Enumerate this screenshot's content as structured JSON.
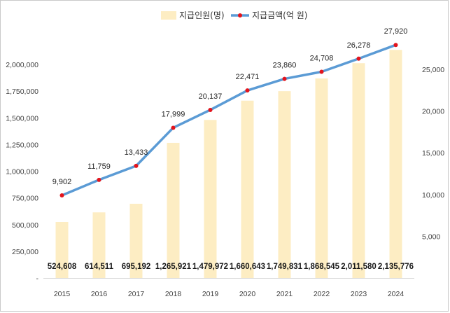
{
  "chart_data": {
    "type": "bar+line",
    "categories": [
      "2015",
      "2016",
      "2017",
      "2018",
      "2019",
      "2020",
      "2021",
      "2022",
      "2023",
      "2024"
    ],
    "series": [
      {
        "name": "지급인원(명)",
        "type": "bar",
        "axis": "left",
        "color": "#fdedc3",
        "values": [
          524608,
          614511,
          695192,
          1265921,
          1479972,
          1660643,
          1749831,
          1868545,
          2011580,
          2135776
        ],
        "labels": [
          "524,608",
          "614,511",
          "695,192",
          "1,265,921",
          "1,479,972",
          "1,660,643",
          "1,749,831",
          "1,868,545",
          "2,011,580",
          "2,135,776"
        ]
      },
      {
        "name": "지급금액(억 원)",
        "type": "line",
        "axis": "right",
        "line_color": "#5b9bd5",
        "marker_color": "#e3141c",
        "values": [
          9902,
          11759,
          13433,
          17999,
          20137,
          22471,
          23860,
          24708,
          26278,
          27920
        ],
        "labels": [
          "9,902",
          "11,759",
          "13,433",
          "17,999",
          "20,137",
          "22,471",
          "23,860",
          "24,708",
          "26,278",
          "27,920"
        ]
      }
    ],
    "left_axis": {
      "ylim": [
        0,
        2250000
      ],
      "ticks": [
        0,
        250000,
        500000,
        750000,
        1000000,
        1250000,
        1500000,
        1750000,
        2000000
      ],
      "tick_labels": [
        "-",
        "250,000",
        "500,000",
        "750,000",
        "1,000,000",
        "1,250,000",
        "1,500,000",
        "1,750,000",
        "2,000,000"
      ]
    },
    "right_axis": {
      "ylim": [
        0,
        30000
      ],
      "ticks": [
        5000,
        10000,
        15000,
        20000,
        25000
      ],
      "tick_labels": [
        "5,000",
        "10,000",
        "15,000",
        "20,000",
        "25,000"
      ]
    },
    "legend_position": "top",
    "grid": false
  }
}
